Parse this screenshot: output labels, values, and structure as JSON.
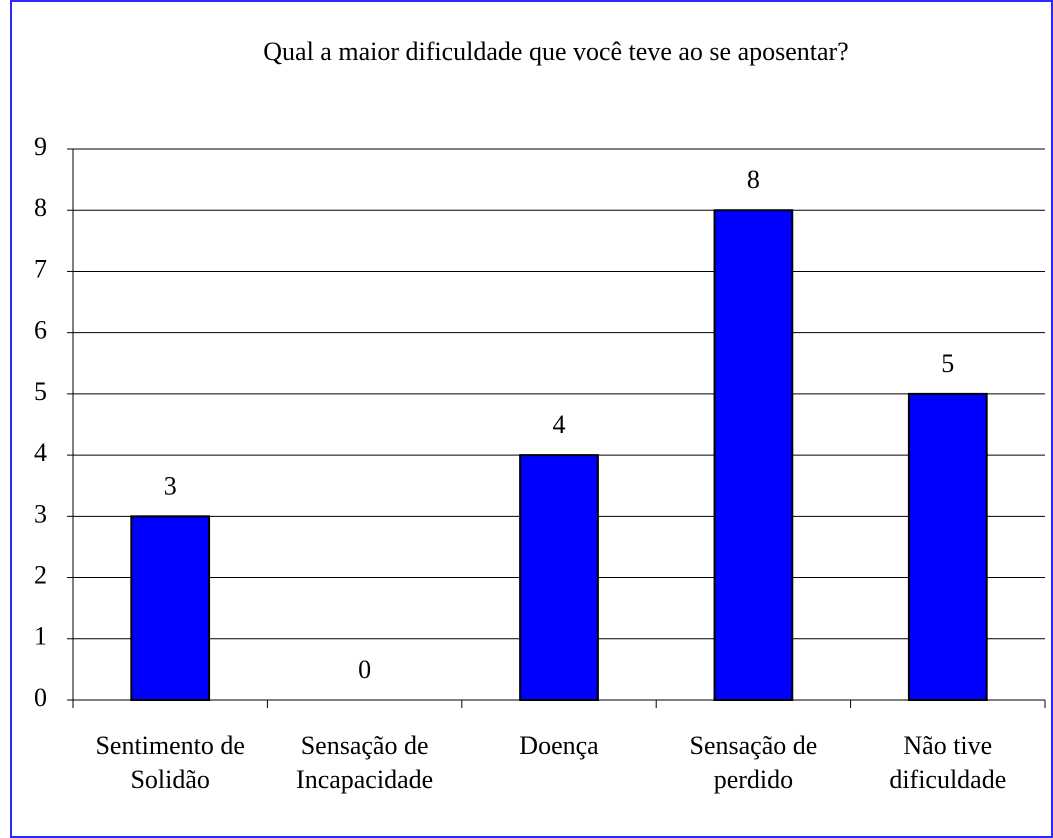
{
  "chart_data": {
    "type": "bar",
    "title": "Qual a maior dificuldade que você teve ao se aposentar?",
    "categories": [
      "Sentimento de Solidão",
      "Sensação de Incapacidade",
      "Doença",
      "Sensação de perdido",
      "Não tive dificuldade"
    ],
    "values": [
      3,
      0,
      4,
      8,
      5
    ],
    "color": "#0000ff",
    "ylim": [
      0,
      9
    ],
    "yticks": [
      0,
      1,
      2,
      3,
      4,
      5,
      6,
      7,
      8,
      9
    ],
    "grid": true
  }
}
